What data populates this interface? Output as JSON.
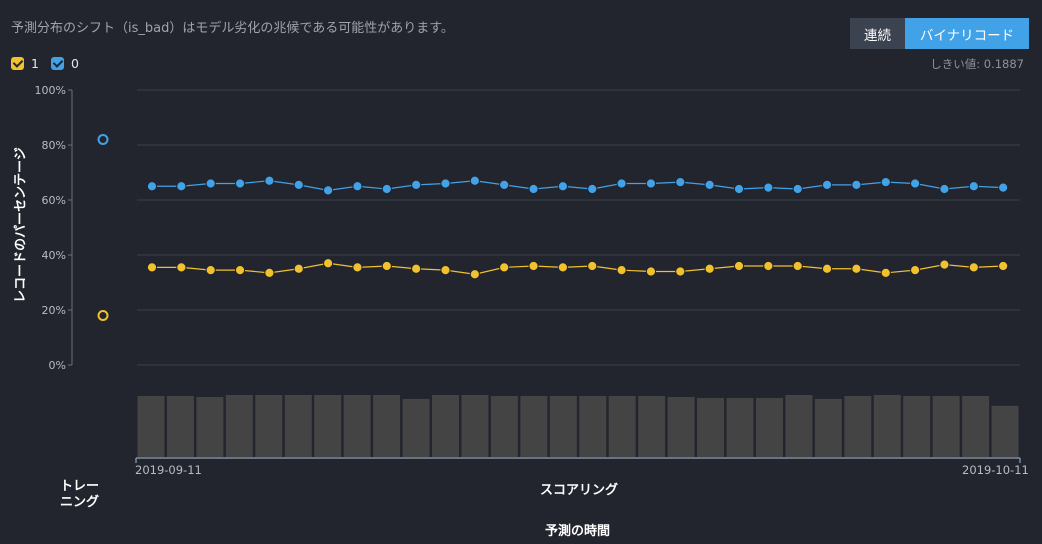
{
  "header": {
    "description": "予測分布のシフト（is_bad）はモデル劣化の兆候である可能性があります。",
    "toggle_continuous": "連続",
    "toggle_binary": "バイナリコード",
    "threshold": "しきい値: 0.1887"
  },
  "legend": [
    {
      "label": "1",
      "color": "#f2c12e"
    },
    {
      "label": "0",
      "color": "#42a2e8"
    }
  ],
  "chart_data": {
    "type": "line",
    "ylabel": "レコードのパーセンテージ",
    "xlabel": "予測の時間",
    "training_label": "トレー\nニング",
    "scoring_label": "スコアリング",
    "date_start": "2019-09-11",
    "date_end": "2019-10-11",
    "yticks": [
      "0%",
      "20%",
      "40%",
      "60%",
      "80%",
      "100%"
    ],
    "ylim": [
      0,
      100
    ],
    "training": {
      "1": 18,
      "0": 82
    },
    "series": [
      {
        "name": "0",
        "color": "#42a2e8",
        "values": [
          65,
          65,
          66,
          66,
          67,
          65.5,
          63.5,
          65,
          64,
          65.5,
          66,
          67,
          65.5,
          64,
          65,
          64,
          66,
          66,
          66.5,
          65.5,
          64,
          64.5,
          64,
          65.5,
          65.5,
          66.5,
          66,
          64,
          65,
          64.5
        ]
      },
      {
        "name": "1",
        "color": "#f2c12e",
        "values": [
          35.5,
          35.5,
          34.5,
          34.5,
          33.5,
          35,
          37,
          35.5,
          36,
          35,
          34.5,
          33,
          35.5,
          36,
          35.5,
          36,
          34.5,
          34,
          34,
          35,
          36,
          36,
          36,
          35,
          35,
          33.5,
          34.5,
          36.5,
          35.5,
          36
        ]
      }
    ],
    "volumes": [
      62,
      62,
      61,
      63,
      63,
      63,
      63,
      63,
      63,
      59,
      63,
      63,
      62,
      62,
      62,
      62,
      62,
      62,
      61,
      60,
      60,
      60,
      63,
      59,
      62,
      63,
      62,
      62,
      62,
      52
    ]
  }
}
